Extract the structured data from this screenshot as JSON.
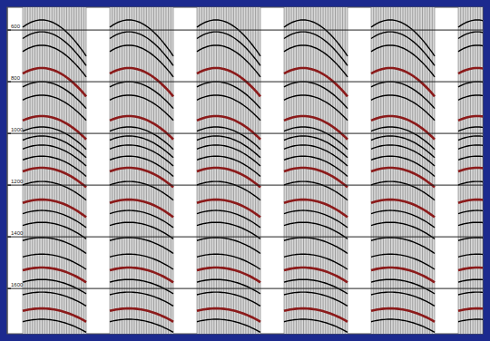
{
  "chart_data": {
    "type": "seismic",
    "gathers": 6,
    "ylim": [
      512,
      1775
    ],
    "yticks": [
      600,
      800,
      1000,
      1200,
      1400,
      1600
    ],
    "grid": true,
    "tick_labels": "y",
    "events": [
      {
        "time": 561,
        "color": "black"
      },
      {
        "time": 607,
        "color": "black"
      },
      {
        "time": 659,
        "color": "black"
      },
      {
        "time": 747,
        "color": "#8b1a1a"
      },
      {
        "time": 800,
        "color": "black"
      },
      {
        "time": 852,
        "color": "black"
      },
      {
        "time": 933,
        "color": "#8b1a1a"
      },
      {
        "time": 975,
        "color": "black"
      },
      {
        "time": 1010,
        "color": "black"
      },
      {
        "time": 1045,
        "color": "black"
      },
      {
        "time": 1088,
        "color": "black"
      },
      {
        "time": 1133,
        "color": "#8b1a1a"
      },
      {
        "time": 1186,
        "color": "black"
      },
      {
        "time": 1256,
        "color": "#8b1a1a"
      },
      {
        "time": 1298,
        "color": "black"
      },
      {
        "time": 1344,
        "color": "black"
      },
      {
        "time": 1403,
        "color": "black"
      },
      {
        "time": 1467,
        "color": "black"
      },
      {
        "time": 1519,
        "color": "#8b1a1a"
      },
      {
        "time": 1565,
        "color": "black"
      },
      {
        "time": 1614,
        "color": "black"
      },
      {
        "time": 1677,
        "color": "#8b1a1a"
      },
      {
        "time": 1719,
        "color": "black"
      }
    ]
  }
}
